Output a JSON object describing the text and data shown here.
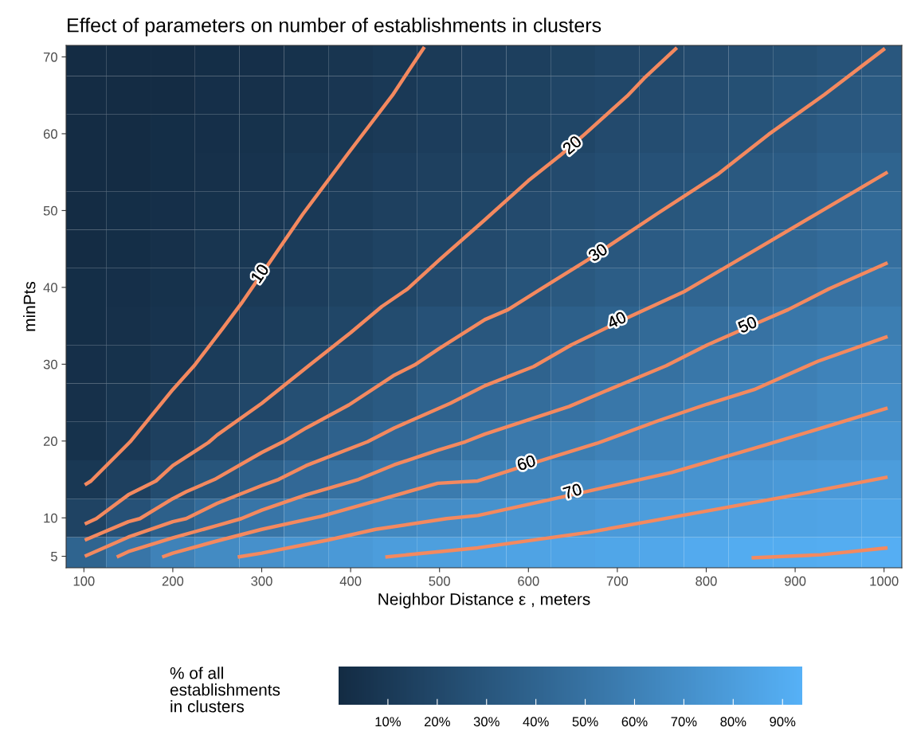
{
  "chart_data": {
    "type": "heatmap",
    "title": "Effect of parameters on number of establishments in clusters",
    "xlabel": "Neighbor Distance ε , meters",
    "ylabel": "minPts",
    "clabel": "% of all\nestablishments\nin clusters",
    "x": [
      100,
      150,
      200,
      250,
      300,
      350,
      400,
      450,
      500,
      550,
      600,
      650,
      700,
      750,
      800,
      850,
      900,
      950,
      1000
    ],
    "y": [
      70,
      65,
      60,
      55,
      50,
      45,
      40,
      35,
      30,
      25,
      20,
      15,
      10,
      5
    ],
    "cells": [
      [
        1,
        1,
        1,
        2,
        3,
        5,
        7,
        9,
        11,
        13,
        14,
        16,
        18,
        20,
        22,
        24,
        26,
        28,
        31
      ],
      [
        1,
        1,
        1,
        3,
        4,
        6,
        8,
        10,
        12,
        14,
        16,
        18,
        20,
        22,
        24,
        26,
        29,
        31,
        33
      ],
      [
        1,
        1,
        2,
        3,
        5,
        7,
        9,
        11,
        13,
        15,
        17,
        19,
        22,
        24,
        27,
        29,
        31,
        34,
        36
      ],
      [
        1,
        1,
        2,
        4,
        6,
        9,
        11,
        13,
        15,
        17,
        19,
        22,
        24,
        27,
        29,
        32,
        34,
        37,
        40
      ],
      [
        1,
        2,
        3,
        5,
        8,
        10,
        12,
        15,
        17,
        19,
        22,
        25,
        27,
        30,
        33,
        36,
        38,
        41,
        44
      ],
      [
        1,
        2,
        4,
        7,
        9,
        12,
        14,
        17,
        19,
        22,
        25,
        28,
        31,
        34,
        37,
        40,
        42,
        45,
        48
      ],
      [
        2,
        3,
        5,
        8,
        11,
        13,
        16,
        19,
        22,
        25,
        29,
        32,
        35,
        38,
        41,
        44,
        47,
        50,
        53
      ],
      [
        2,
        4,
        6,
        9,
        13,
        16,
        19,
        23,
        27,
        31,
        34,
        37,
        40,
        44,
        47,
        50,
        53,
        56,
        58
      ],
      [
        3,
        5,
        8,
        12,
        16,
        20,
        24,
        28,
        32,
        36,
        39,
        43,
        46,
        49,
        53,
        56,
        59,
        62,
        64
      ],
      [
        4,
        7,
        11,
        15,
        20,
        25,
        30,
        33,
        39,
        43,
        46,
        50,
        53,
        56,
        60,
        62,
        64,
        67,
        69
      ],
      [
        5,
        10,
        15,
        21,
        27,
        33,
        38,
        43,
        47,
        51,
        55,
        58,
        61,
        63,
        66,
        68,
        71,
        73,
        75
      ],
      [
        9,
        15,
        23,
        30,
        37,
        43,
        49,
        53,
        56,
        60,
        63,
        66,
        68,
        71,
        73,
        75,
        77,
        78,
        80
      ],
      [
        17,
        27,
        37,
        45,
        52,
        59,
        63,
        66,
        69,
        72,
        74,
        76,
        78,
        80,
        81,
        82,
        84,
        85,
        86
      ],
      [
        40,
        52,
        61,
        67,
        71,
        74,
        77,
        80,
        81,
        83,
        84,
        85,
        86,
        87,
        89,
        90,
        90,
        91,
        92
      ]
    ],
    "colors": [
      "#132b43",
      "#56b1f7"
    ],
    "clim": [
      0,
      94
    ],
    "cticks": [
      {
        "value": 10,
        "label": "10%"
      },
      {
        "value": 20,
        "label": "20%"
      },
      {
        "value": 30,
        "label": "30%"
      },
      {
        "value": 40,
        "label": "40%"
      },
      {
        "value": 50,
        "label": "50%"
      },
      {
        "value": 60,
        "label": "60%"
      },
      {
        "value": 70,
        "label": "70%"
      },
      {
        "value": 80,
        "label": "80%"
      },
      {
        "value": 90,
        "label": "90%"
      }
    ],
    "xlim": [
      80,
      1020
    ],
    "ylim": [
      3.5,
      71.5
    ],
    "xticks": [
      100,
      200,
      300,
      400,
      500,
      600,
      700,
      800,
      900,
      1000
    ],
    "yticks": [
      5,
      10,
      20,
      30,
      40,
      50,
      60,
      70
    ],
    "grid": false,
    "legend": false,
    "series": [
      {
        "type": "line",
        "color": "#f4895f",
        "x": [
          101,
          108,
          152,
          200,
          224,
          257,
          277,
          346,
          397,
          447,
          483
        ],
        "values": [
          14.3,
          14.8,
          19.9,
          26.7,
          29.8,
          34.8,
          37.9,
          49.5,
          57.4,
          65,
          71.3
        ]
      },
      {
        "type": "line",
        "color": "#f4895f",
        "x": [
          101,
          114,
          150,
          181,
          200,
          240,
          250,
          300,
          354,
          400,
          435,
          464,
          500,
          551,
          600,
          637,
          664,
          711,
          730,
          767
        ],
        "values": [
          9.2,
          9.9,
          13,
          14.8,
          16.8,
          19.8,
          20.8,
          24.9,
          29.9,
          34.1,
          37.5,
          39.8,
          43.6,
          48.8,
          53.9,
          57.3,
          60,
          64.9,
          67.2,
          71.2
        ]
      },
      {
        "type": "line",
        "color": "#f4895f",
        "x": [
          101,
          150,
          163,
          200,
          215,
          247,
          300,
          324,
          350,
          398,
          448,
          472,
          499,
          551,
          577,
          614,
          667,
          745,
          814,
          870,
          933,
          1001
        ],
        "values": [
          7.1,
          9.5,
          9.9,
          12.5,
          13.4,
          15,
          18.5,
          19.9,
          21.7,
          24.7,
          28.5,
          29.9,
          32,
          35.8,
          37.1,
          39.8,
          43.6,
          49.6,
          54.8,
          59.9,
          65.1,
          71.1
        ]
      },
      {
        "type": "line",
        "color": "#f4895f",
        "x": [
          101,
          150,
          200,
          215,
          250,
          300,
          319,
          350,
          419,
          449,
          512,
          551,
          606,
          648,
          705,
          776,
          854,
          929,
          1004
        ],
        "values": [
          5,
          7.5,
          9.5,
          9.9,
          11.9,
          14.2,
          15,
          16.8,
          19.9,
          21.7,
          24.9,
          27.2,
          29.7,
          32.5,
          35.7,
          39.5,
          44.8,
          49.9,
          55
        ]
      },
      {
        "type": "line",
        "color": "#f4895f",
        "x": [
          137,
          150,
          200,
          250,
          277,
          300,
          350,
          409,
          449,
          498,
          529,
          551,
          646,
          705,
          755,
          801,
          854,
          892,
          938,
          1004
        ],
        "values": [
          4.9,
          5.6,
          7.4,
          9,
          9.9,
          11,
          13,
          15,
          16.9,
          18.8,
          19.9,
          20.9,
          24.5,
          27.4,
          29.8,
          32.5,
          35.2,
          37.1,
          39.8,
          43.2
        ]
      },
      {
        "type": "line",
        "color": "#f4895f",
        "x": [
          188,
          200,
          250,
          300,
          367,
          428,
          498,
          543,
          607,
          677,
          745,
          801,
          854,
          926,
          1004
        ],
        "values": [
          4.9,
          5.4,
          7,
          8.5,
          10.2,
          12.2,
          14.5,
          14.8,
          17.2,
          19.7,
          22.6,
          24.8,
          26.7,
          30.4,
          33.6
        ]
      },
      {
        "type": "line",
        "color": "#f4895f",
        "x": [
          273,
          300,
          374,
          428,
          508,
          543,
          649,
          761,
          867,
          1004
        ],
        "values": [
          4.9,
          5.4,
          7.1,
          8.5,
          9.9,
          10.3,
          13,
          15.9,
          19.5,
          24.3
        ]
      },
      {
        "type": "line",
        "color": "#f4895f",
        "x": [
          439,
          543,
          667,
          801,
          901,
          1004
        ],
        "values": [
          4.9,
          6.1,
          8.1,
          10.9,
          13,
          15.3
        ]
      },
      {
        "type": "line",
        "color": "#f4895f",
        "x": [
          851,
          929,
          1004
        ],
        "values": [
          4.8,
          5.2,
          6.1
        ]
      }
    ],
    "annotations": [
      {
        "text": "10",
        "x": 299,
        "y": 41.7
      },
      {
        "text": "20",
        "x": 650,
        "y": 58.4
      },
      {
        "text": "30",
        "x": 679,
        "y": 44.4
      },
      {
        "text": "40",
        "x": 700,
        "y": 35.6
      },
      {
        "text": "50",
        "x": 847,
        "y": 35
      },
      {
        "text": "60",
        "x": 598,
        "y": 17
      },
      {
        "text": "70",
        "x": 650,
        "y": 13.3
      }
    ]
  }
}
